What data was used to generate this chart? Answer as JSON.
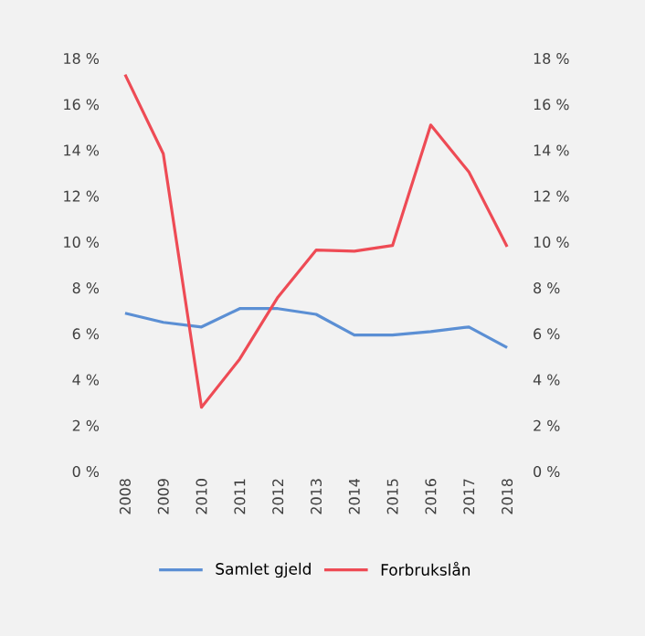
{
  "chart_data": {
    "type": "line",
    "categories": [
      "2008",
      "2009",
      "2010",
      "2011",
      "2012",
      "2013",
      "2014",
      "2015",
      "2016",
      "2017",
      "2018"
    ],
    "series": [
      {
        "name": "Samlet gjeld",
        "color": "#5b8fd4",
        "values": [
          6.9,
          6.5,
          6.3,
          7.1,
          7.1,
          6.85,
          5.95,
          5.95,
          6.1,
          6.3,
          5.4
        ]
      },
      {
        "name": "Forbrukslån",
        "color": "#ee4b55",
        "axis": "y2",
        "values": [
          17.3,
          13.85,
          2.8,
          4.9,
          7.6,
          9.65,
          9.6,
          9.85,
          15.1,
          13.05,
          9.8
        ]
      }
    ],
    "ylim": [
      0,
      18
    ],
    "yticks": [
      {
        "value": 0,
        "label": "0 %"
      },
      {
        "value": 2,
        "label": "2 %"
      },
      {
        "value": 4,
        "label": "4 %"
      },
      {
        "value": 6,
        "label": "6 %"
      },
      {
        "value": 8,
        "label": "8 %"
      },
      {
        "value": 10,
        "label": "10 %"
      },
      {
        "value": 12,
        "label": "12 %"
      },
      {
        "value": 14,
        "label": "14 %"
      },
      {
        "value": 16,
        "label": "16 %"
      },
      {
        "value": 18,
        "label": "18 %"
      }
    ],
    "y2lim": [
      0,
      18
    ],
    "y2ticks": [
      {
        "value": 0,
        "label": "0 %"
      },
      {
        "value": 2,
        "label": "2 %"
      },
      {
        "value": 4,
        "label": "4 %"
      },
      {
        "value": 6,
        "label": "6 %"
      },
      {
        "value": 8,
        "label": "8 %"
      },
      {
        "value": 10,
        "label": "10 %"
      },
      {
        "value": 12,
        "label": "12 %"
      },
      {
        "value": 14,
        "label": "14 %"
      },
      {
        "value": 16,
        "label": "16 %"
      },
      {
        "value": 18,
        "label": "18 %"
      }
    ],
    "legend": "bottom",
    "grid": false,
    "marker": "none",
    "line_style": "solid"
  }
}
